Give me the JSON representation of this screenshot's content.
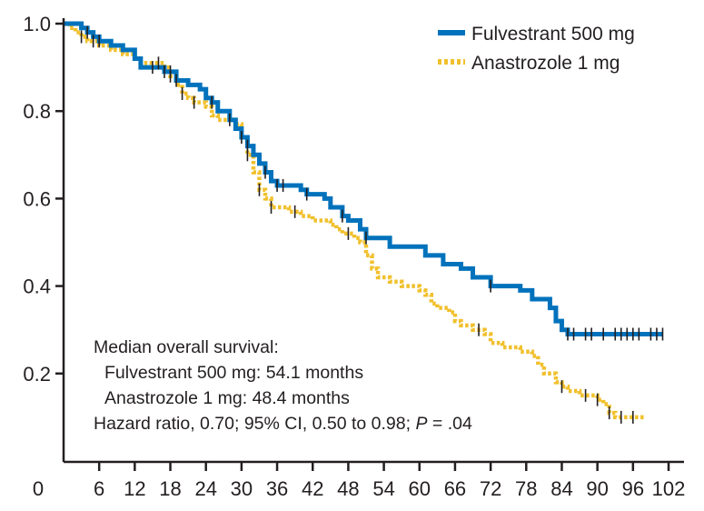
{
  "chart_data": {
    "type": "line",
    "subtype": "kaplan-meier",
    "title": "",
    "xlabel": "",
    "ylabel": "",
    "xlim": [
      0,
      102
    ],
    "ylim": [
      0,
      1.0
    ],
    "x_ticks": [
      0,
      6,
      12,
      18,
      24,
      30,
      36,
      42,
      48,
      54,
      60,
      66,
      72,
      78,
      84,
      90,
      96,
      102
    ],
    "y_ticks": [
      0.2,
      0.4,
      0.6,
      0.8,
      1.0
    ],
    "y_tick_labels": [
      "0.2",
      "0.4",
      "0.6",
      "0.8",
      "1.0"
    ],
    "legend": {
      "position": "top-right"
    },
    "series": [
      {
        "name": "Fulvestrant 500 mg",
        "color": "#0072bc",
        "style": "solid",
        "steps": [
          [
            0,
            1.0
          ],
          [
            3,
            0.99
          ],
          [
            4,
            0.98
          ],
          [
            5,
            0.97
          ],
          [
            6,
            0.96
          ],
          [
            7,
            0.96
          ],
          [
            8,
            0.95
          ],
          [
            10,
            0.94
          ],
          [
            12,
            0.92
          ],
          [
            13,
            0.9
          ],
          [
            16,
            0.9
          ],
          [
            17,
            0.89
          ],
          [
            18,
            0.89
          ],
          [
            19,
            0.87
          ],
          [
            20,
            0.87
          ],
          [
            21,
            0.86
          ],
          [
            23,
            0.85
          ],
          [
            24,
            0.83
          ],
          [
            25,
            0.82
          ],
          [
            26,
            0.8
          ],
          [
            28,
            0.78
          ],
          [
            29,
            0.76
          ],
          [
            30,
            0.74
          ],
          [
            31,
            0.72
          ],
          [
            32,
            0.7
          ],
          [
            33,
            0.68
          ],
          [
            34,
            0.66
          ],
          [
            35,
            0.64
          ],
          [
            36,
            0.63
          ],
          [
            39,
            0.63
          ],
          [
            40,
            0.62
          ],
          [
            41,
            0.61
          ],
          [
            44,
            0.6
          ],
          [
            45,
            0.58
          ],
          [
            47,
            0.56
          ],
          [
            48,
            0.55
          ],
          [
            50,
            0.53
          ],
          [
            51,
            0.51
          ],
          [
            55,
            0.49
          ],
          [
            61,
            0.47
          ],
          [
            64,
            0.45
          ],
          [
            67,
            0.44
          ],
          [
            69,
            0.42
          ],
          [
            72,
            0.4
          ],
          [
            77,
            0.39
          ],
          [
            79,
            0.37
          ],
          [
            81,
            0.37
          ],
          [
            82,
            0.35
          ],
          [
            83,
            0.32
          ],
          [
            84,
            0.3
          ],
          [
            85,
            0.29
          ],
          [
            101,
            0.29
          ]
        ],
        "censor_times": [
          4,
          6,
          15,
          17,
          18,
          19,
          25,
          30,
          31,
          34,
          36,
          37,
          41,
          47,
          51,
          72,
          85,
          86,
          88,
          89,
          91,
          93,
          94,
          95,
          96,
          97,
          99,
          100,
          101
        ]
      },
      {
        "name": "Anastrozole 1 mg",
        "color": "#f1c02c",
        "style": "dotted",
        "steps": [
          [
            0,
            1.0
          ],
          [
            1,
            0.99
          ],
          [
            2,
            0.98
          ],
          [
            3,
            0.97
          ],
          [
            4,
            0.96
          ],
          [
            6,
            0.95
          ],
          [
            8,
            0.94
          ],
          [
            10,
            0.93
          ],
          [
            12,
            0.92
          ],
          [
            13,
            0.91
          ],
          [
            17,
            0.9
          ],
          [
            18,
            0.88
          ],
          [
            19,
            0.86
          ],
          [
            20,
            0.84
          ],
          [
            21,
            0.83
          ],
          [
            22,
            0.82
          ],
          [
            24,
            0.81
          ],
          [
            25,
            0.79
          ],
          [
            26,
            0.78
          ],
          [
            29,
            0.77
          ],
          [
            30,
            0.74
          ],
          [
            31,
            0.7
          ],
          [
            32,
            0.66
          ],
          [
            33,
            0.62
          ],
          [
            34,
            0.6
          ],
          [
            35,
            0.58
          ],
          [
            38,
            0.57
          ],
          [
            40,
            0.56
          ],
          [
            42,
            0.55
          ],
          [
            45,
            0.54
          ],
          [
            46,
            0.53
          ],
          [
            47,
            0.52
          ],
          [
            49,
            0.51
          ],
          [
            50,
            0.5
          ],
          [
            51,
            0.47
          ],
          [
            52,
            0.44
          ],
          [
            53,
            0.42
          ],
          [
            55,
            0.41
          ],
          [
            57,
            0.4
          ],
          [
            60,
            0.39
          ],
          [
            61,
            0.38
          ],
          [
            62,
            0.36
          ],
          [
            63,
            0.35
          ],
          [
            65,
            0.34
          ],
          [
            66,
            0.32
          ],
          [
            67,
            0.31
          ],
          [
            69,
            0.3
          ],
          [
            71,
            0.29
          ],
          [
            72,
            0.27
          ],
          [
            74,
            0.26
          ],
          [
            77,
            0.25
          ],
          [
            79,
            0.24
          ],
          [
            80,
            0.22
          ],
          [
            81,
            0.2
          ],
          [
            83,
            0.18
          ],
          [
            84,
            0.17
          ],
          [
            85,
            0.16
          ],
          [
            87,
            0.15
          ],
          [
            90,
            0.14
          ],
          [
            91,
            0.13
          ],
          [
            92,
            0.11
          ],
          [
            93,
            0.1
          ],
          [
            98,
            0.1
          ]
        ],
        "censor_times": [
          3,
          5,
          16,
          18,
          20,
          22,
          28,
          31,
          33,
          35,
          39,
          48,
          70,
          84,
          88,
          90,
          92,
          94,
          96
        ]
      }
    ],
    "annotation": {
      "heading": "Median overall survival:",
      "line1": "Fulvestrant 500 mg: 54.1 months",
      "line2": "Anastrozole 1 mg: 48.4 months",
      "hazard_prefix": "Hazard ratio, 0.70; 95% CI, 0.50 to 0.98; ",
      "p_symbol": "P",
      "p_value": " = .04"
    }
  }
}
